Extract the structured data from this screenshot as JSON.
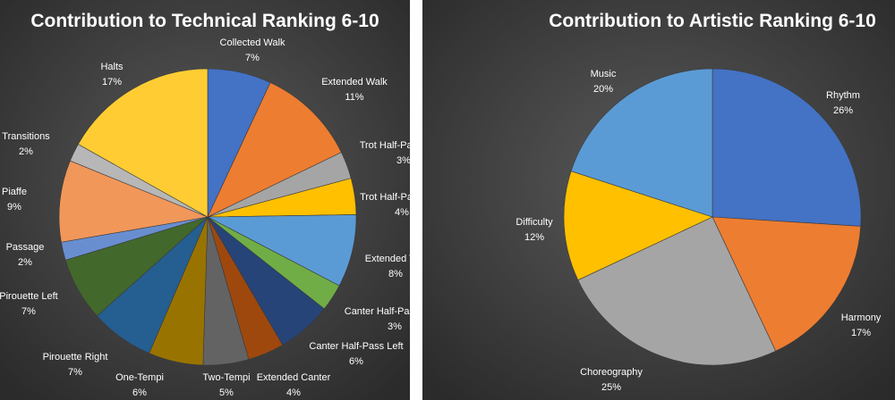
{
  "chart_data": [
    {
      "type": "pie",
      "title": "Contribution to Technical Ranking 6-10",
      "categories": [
        "Collected Walk",
        "Extended Walk",
        "Trot Half-Pass Right",
        "Trot Half-Pass Lefy",
        "Extended Trot",
        "Canter Half-Pass Right",
        "Canter Half-Pass Left",
        "Extended Canter",
        "Two-Tempi",
        "One-Tempi",
        "Pirouette Right",
        "Pirouette Left",
        "Passage",
        "Piaffe",
        "Transitions",
        "Halts"
      ],
      "values": [
        7,
        11,
        3,
        4,
        8,
        3,
        6,
        4,
        5,
        6,
        7,
        7,
        2,
        9,
        2,
        17
      ],
      "value_labels": [
        "7%",
        "11%",
        "3%",
        "4%",
        "8%",
        "3%",
        "6%",
        "4%",
        "5%",
        "6%",
        "7%",
        "7%",
        "2%",
        "9%",
        "2%",
        "17%"
      ],
      "colors": [
        "#4472c4",
        "#ed7d31",
        "#a5a5a5",
        "#ffc000",
        "#5b9bd5",
        "#70ad47",
        "#264478",
        "#9e480e",
        "#636363",
        "#997300",
        "#255e91",
        "#43682b",
        "#698ed0",
        "#f1975a",
        "#b7b7b7",
        "#ffcd33"
      ],
      "start_angle_deg": 0,
      "direction": "clockwise",
      "legend": "none"
    },
    {
      "type": "pie",
      "title": "Contribution to Artistic Ranking 6-10",
      "categories": [
        "Rhythm",
        "Harmony",
        "Choreography",
        "Difficulty",
        "Music"
      ],
      "values": [
        26,
        17,
        25,
        12,
        20
      ],
      "value_labels": [
        "26%",
        "17%",
        "25%",
        "12%",
        "20%"
      ],
      "colors": [
        "#4472c4",
        "#ed7d31",
        "#a5a5a5",
        "#ffc000",
        "#5b9bd5"
      ],
      "start_angle_deg": 0,
      "direction": "clockwise",
      "legend": "none"
    }
  ]
}
